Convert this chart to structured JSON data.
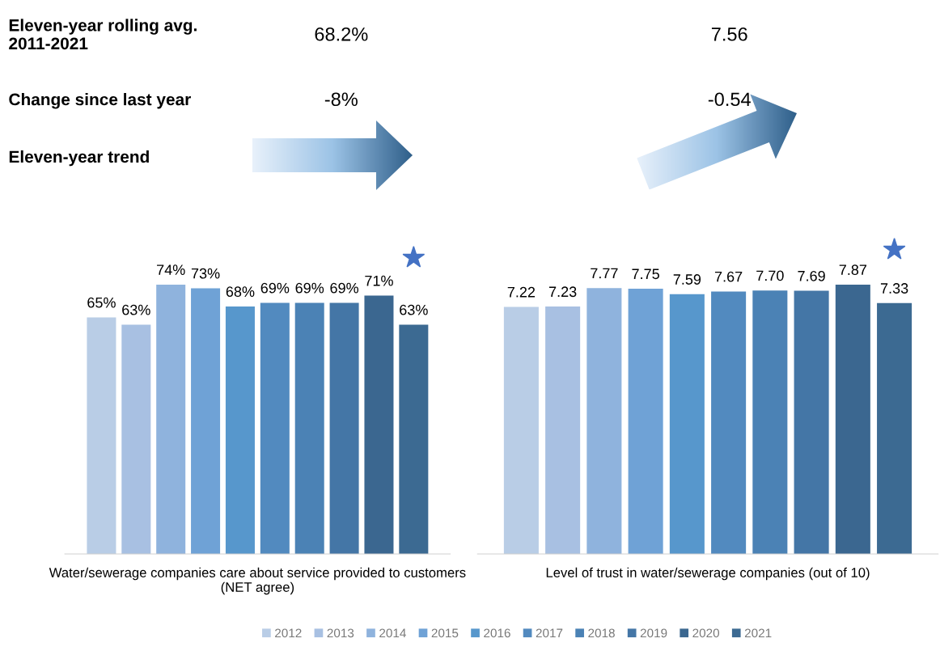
{
  "chart_data": [
    {
      "type": "bar",
      "xlabel": "Water/sewerage companies care about service provided to customers (NET agree)",
      "categories": [
        null
      ],
      "tick_labels": false,
      "grid": false,
      "legend": "bottom",
      "series": [
        {
          "name": "2012",
          "color": "#b9cde6",
          "values": [
            65
          ],
          "value_labels": [
            "65%"
          ]
        },
        {
          "name": "2013",
          "color": "#a8c0e2",
          "values": [
            63
          ],
          "value_labels": [
            "63%"
          ]
        },
        {
          "name": "2014",
          "color": "#8fb3dd",
          "values": [
            74
          ],
          "value_labels": [
            "74%"
          ]
        },
        {
          "name": "2015",
          "color": "#6fa2d6",
          "values": [
            73
          ],
          "value_labels": [
            "73%"
          ]
        },
        {
          "name": "2016",
          "color": "#5797cc",
          "values": [
            68
          ],
          "value_labels": [
            "68%"
          ]
        },
        {
          "name": "2017",
          "color": "#528abf",
          "values": [
            69
          ],
          "value_labels": [
            "69%"
          ]
        },
        {
          "name": "2018",
          "color": "#4b82b5",
          "values": [
            69
          ],
          "value_labels": [
            "69%"
          ]
        },
        {
          "name": "2019",
          "color": "#4476a6",
          "values": [
            69
          ],
          "value_labels": [
            "69%"
          ]
        },
        {
          "name": "2020",
          "color": "#3b6790",
          "values": [
            71
          ],
          "value_labels": [
            "71%"
          ]
        },
        {
          "name": "2021",
          "color": "#3c6a92",
          "values": [
            63
          ],
          "value_labels": [
            "63%"
          ]
        }
      ],
      "annotations": [
        "Eleven-year rolling avg. 2011-2021",
        "Change since last year",
        "Eleven-year trend",
        "68.2%",
        "-8%"
      ]
    },
    {
      "type": "bar",
      "xlabel": "Level of trust in water/sewerage companies (out of 10)",
      "categories": [
        null
      ],
      "tick_labels": false,
      "grid": false,
      "series": [
        {
          "color": "#b9cde6",
          "values": [
            7.22
          ],
          "value_labels": [
            "7.22"
          ]
        },
        {
          "color": "#a8c0e2",
          "values": [
            7.23
          ],
          "value_labels": [
            "7.23"
          ]
        },
        {
          "color": "#8fb3dd",
          "values": [
            7.77
          ],
          "value_labels": [
            "7.77"
          ]
        },
        {
          "color": "#6fa2d6",
          "values": [
            7.75
          ],
          "value_labels": [
            "7.75"
          ]
        },
        {
          "color": "#5797cc",
          "values": [
            7.59
          ],
          "value_labels": [
            "7.59"
          ]
        },
        {
          "color": "#528abf",
          "values": [
            7.67
          ],
          "value_labels": [
            "7.67"
          ]
        },
        {
          "color": "#4b82b5",
          "values": [
            7.7
          ],
          "value_labels": [
            "7.70"
          ]
        },
        {
          "color": "#4476a6",
          "values": [
            7.69
          ],
          "value_labels": [
            "7.69"
          ]
        },
        {
          "color": "#3b6790",
          "values": [
            7.87
          ],
          "value_labels": [
            "7.87"
          ]
        },
        {
          "color": "#3c6a92",
          "values": [
            7.33
          ],
          "value_labels": [
            "7.33"
          ]
        }
      ],
      "annotations": [
        "7.56",
        "-0.54"
      ]
    }
  ]
}
